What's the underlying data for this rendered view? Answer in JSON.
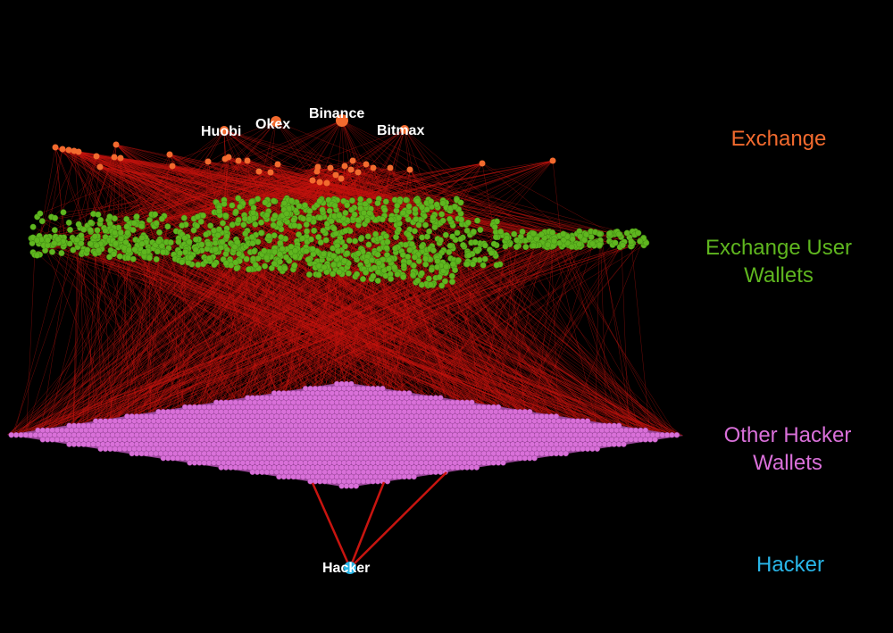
{
  "layers": {
    "exchange": "Exchange",
    "exchange_user_wallets_line1": "Exchange User",
    "exchange_user_wallets_line2": "Wallets",
    "other_hacker_wallets_line1": "Other Hacker",
    "other_hacker_wallets_line2": "Wallets",
    "hacker": "Hacker"
  },
  "nodes": {
    "huobi": "Huobi",
    "okex": "Okex",
    "binance": "Binance",
    "bitmax": "Bitmax",
    "hacker": "Hacker"
  },
  "colors": {
    "background": "#000000",
    "edge": "#c8140f",
    "exchange": "#f26a2e",
    "exchange_user_wallets": "#5fb61f",
    "other_hacker_wallets": "#d970d9",
    "hacker": "#29b6e8",
    "node_label": "#ffffff"
  }
}
